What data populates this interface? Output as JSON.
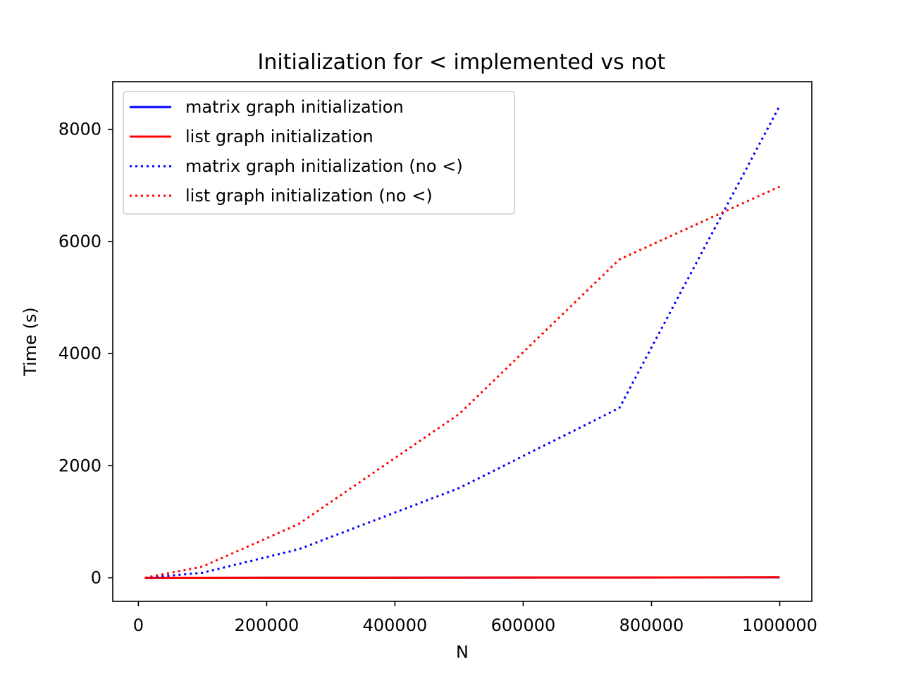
{
  "chart_data": {
    "type": "line",
    "title": "Initialization for < implemented vs not",
    "xlabel": "N",
    "ylabel": "Time (s)",
    "xlim": [
      -40000,
      1050000
    ],
    "ylim": [
      -420,
      8850
    ],
    "x": [
      10000,
      100000,
      250000,
      500000,
      750000,
      1000000
    ],
    "xticks": [
      0,
      200000,
      400000,
      600000,
      800000,
      1000000
    ],
    "xtick_labels": [
      "0",
      "200000",
      "400000",
      "600000",
      "800000",
      "1000000"
    ],
    "yticks": [
      0,
      2000,
      4000,
      6000,
      8000
    ],
    "ytick_labels": [
      "0",
      "2000",
      "4000",
      "6000",
      "8000"
    ],
    "grid": false,
    "legend_position": "top-left",
    "series": [
      {
        "name": "matrix graph initialization",
        "color": "#0000ff",
        "style": "solid",
        "values": [
          0,
          1,
          2,
          4,
          6,
          8
        ]
      },
      {
        "name": "list graph initialization",
        "color": "#ff0000",
        "style": "solid",
        "values": [
          0,
          1,
          2,
          4,
          6,
          9
        ]
      },
      {
        "name": "matrix graph initialization (no <)",
        "color": "#0000ff",
        "style": "dotted",
        "values": [
          0,
          90,
          510,
          1600,
          3030,
          8420
        ]
      },
      {
        "name": "list graph initialization (no <)",
        "color": "#ff0000",
        "style": "dotted",
        "values": [
          0,
          200,
          960,
          2920,
          5680,
          6980
        ]
      }
    ]
  }
}
